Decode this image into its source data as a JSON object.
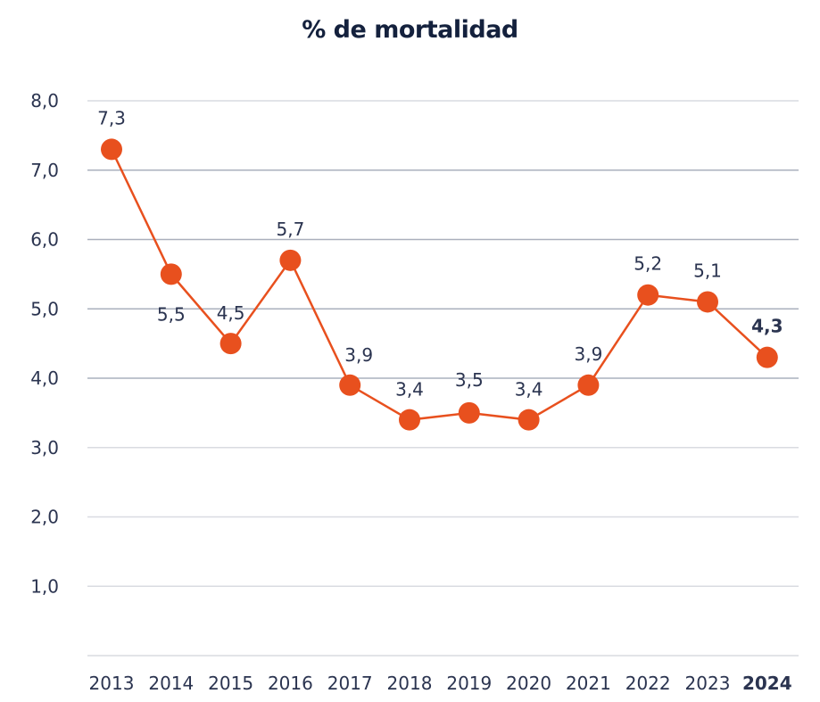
{
  "chart_data": {
    "type": "line",
    "title": "% de mortalidad",
    "categories": [
      "2013",
      "2014",
      "2015",
      "2016",
      "2017",
      "2018",
      "2019",
      "2020",
      "2021",
      "2022",
      "2023",
      "2024"
    ],
    "values": [
      7.3,
      5.5,
      4.5,
      5.7,
      3.9,
      3.4,
      3.5,
      3.4,
      3.9,
      5.2,
      5.1,
      4.3
    ],
    "data_labels": [
      "7,3",
      "5,5",
      "4,5",
      "5,7",
      "3,9",
      "3,4",
      "3,5",
      "3,4",
      "3,9",
      "5,2",
      "5,1",
      "4,3"
    ],
    "y_ticks": [
      "1,0",
      "2,0",
      "3,0",
      "4,0",
      "5,0",
      "6,0",
      "7,0",
      "8,0"
    ],
    "ylim": [
      0,
      8
    ],
    "grid": true,
    "highlighted_category": "2024",
    "colors": {
      "line": "#e8501e",
      "text": "#2b3450",
      "grid": "#d9dbe1"
    }
  }
}
